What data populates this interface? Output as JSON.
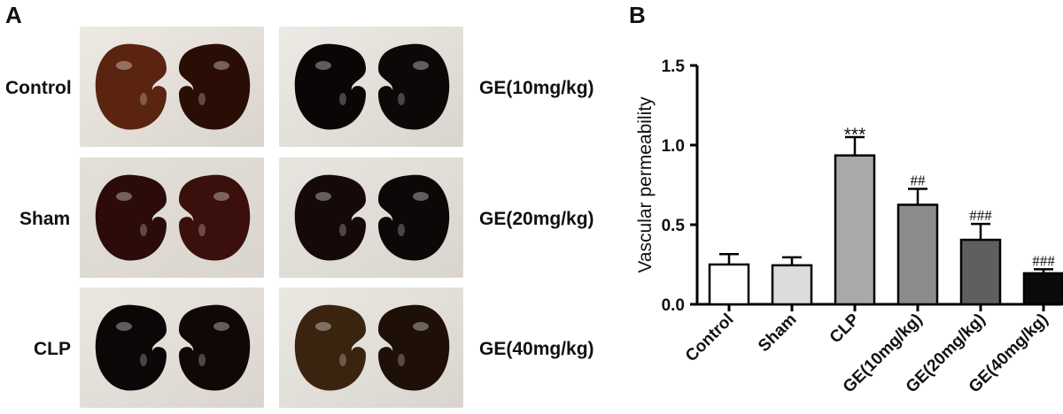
{
  "panel_a": {
    "letter": "A",
    "rows_left": [
      {
        "label": "Control",
        "kidney_colors": [
          "#5a2410",
          "#2a0d05"
        ],
        "bg": "#eeeae3"
      },
      {
        "label": "Sham",
        "kidney_colors": [
          "#2b0c0a",
          "#3a0f0c"
        ],
        "bg": "#e4e0d9"
      },
      {
        "label": "CLP",
        "kidney_colors": [
          "#0d0606",
          "#120707"
        ],
        "bg": "#ebe7e1"
      }
    ],
    "rows_right": [
      {
        "label": "GE(10mg/kg)",
        "kidney_colors": [
          "#0b0606",
          "#0d0707"
        ],
        "bg": "#edeae5"
      },
      {
        "label": "GE(20mg/kg)",
        "kidney_colors": [
          "#150909",
          "#0e0707"
        ],
        "bg": "#e8e5e0"
      },
      {
        "label": "GE(40mg/kg)",
        "kidney_colors": [
          "#3a2410",
          "#1e0f07"
        ],
        "bg": "#ebe8e3"
      }
    ]
  },
  "chart_data": {
    "type": "bar",
    "panel_letter": "B",
    "ylabel": "Vascular permeability",
    "ylim": [
      0,
      1.5
    ],
    "yticks": [
      "0.0",
      "0.5",
      "1.0",
      "1.5"
    ],
    "ytick_values": [
      0,
      0.5,
      1.0,
      1.5
    ],
    "categories": [
      "Control",
      "Sham",
      "CLP",
      "GE(10mg/kg)",
      "GE(20mg/kg)",
      "GE(40mg/kg)"
    ],
    "values": [
      0.25,
      0.245,
      0.935,
      0.625,
      0.405,
      0.195
    ],
    "errors": [
      0.065,
      0.05,
      0.115,
      0.1,
      0.1,
      0.025
    ],
    "annotations": [
      "",
      "",
      "***",
      "##",
      "###",
      "###"
    ],
    "bar_colors": [
      "#ffffff",
      "#dcdcdc",
      "#a9a9a9",
      "#8c8c8c",
      "#5f5f5f",
      "#0a0a0a"
    ],
    "grid": false
  }
}
